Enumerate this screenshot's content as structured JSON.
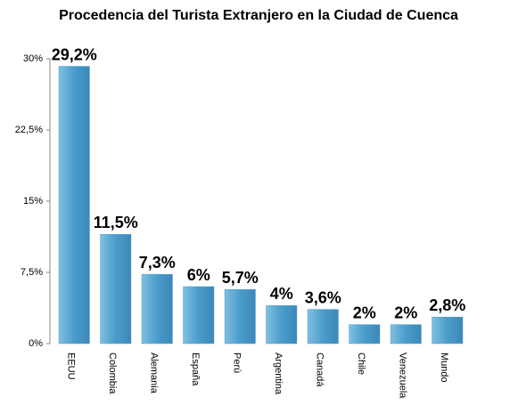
{
  "chart_data": {
    "type": "bar",
    "title": "Procedencia del Turista Extranjero en la Ciudad de Cuenca",
    "categories": [
      "EEUU",
      "Colombia",
      "Alemania",
      "España",
      "Perú",
      "Argentina",
      "Canadá",
      "Chile",
      "Venezuela",
      "Mundo"
    ],
    "values": [
      29.2,
      11.5,
      7.3,
      6,
      5.7,
      4,
      3.6,
      2,
      2,
      2.8
    ],
    "value_labels": [
      "29,2%",
      "11,5%",
      "7,3%",
      "6%",
      "5,7%",
      "4%",
      "3,6%",
      "2%",
      "2%",
      "2,8%"
    ],
    "color": "#4a9ccb",
    "ylim": [
      0,
      30
    ],
    "yticks": [
      {
        "value": 0,
        "label": "0%"
      },
      {
        "value": 7.5,
        "label": "7,5%"
      },
      {
        "value": 15,
        "label": "15%"
      },
      {
        "value": 22.5,
        "label": "22,5%"
      },
      {
        "value": 30,
        "label": "30%"
      }
    ],
    "grid": false
  }
}
